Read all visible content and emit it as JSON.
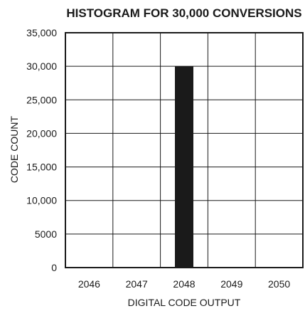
{
  "chart_data": {
    "type": "bar",
    "title": "HISTOGRAM FOR 30,000 CONVERSIONS",
    "xlabel": "DIGITAL CODE OUTPUT",
    "ylabel": "CODE COUNT",
    "categories": [
      "2046",
      "2047",
      "2048",
      "2049",
      "2050"
    ],
    "values": [
      0,
      0,
      30000,
      0,
      0
    ],
    "ylim": [
      0,
      35000
    ],
    "y_ticks": [
      0,
      5000,
      10000,
      15000,
      20000,
      25000,
      30000,
      35000
    ],
    "y_tick_labels": [
      "0",
      "5000",
      "10,000",
      "15,000",
      "20,000",
      "25,000",
      "30,000",
      "35,000"
    ],
    "grid": true,
    "colors": {
      "bar": "#1a1a1a",
      "grid": "#1a1a1a"
    }
  }
}
